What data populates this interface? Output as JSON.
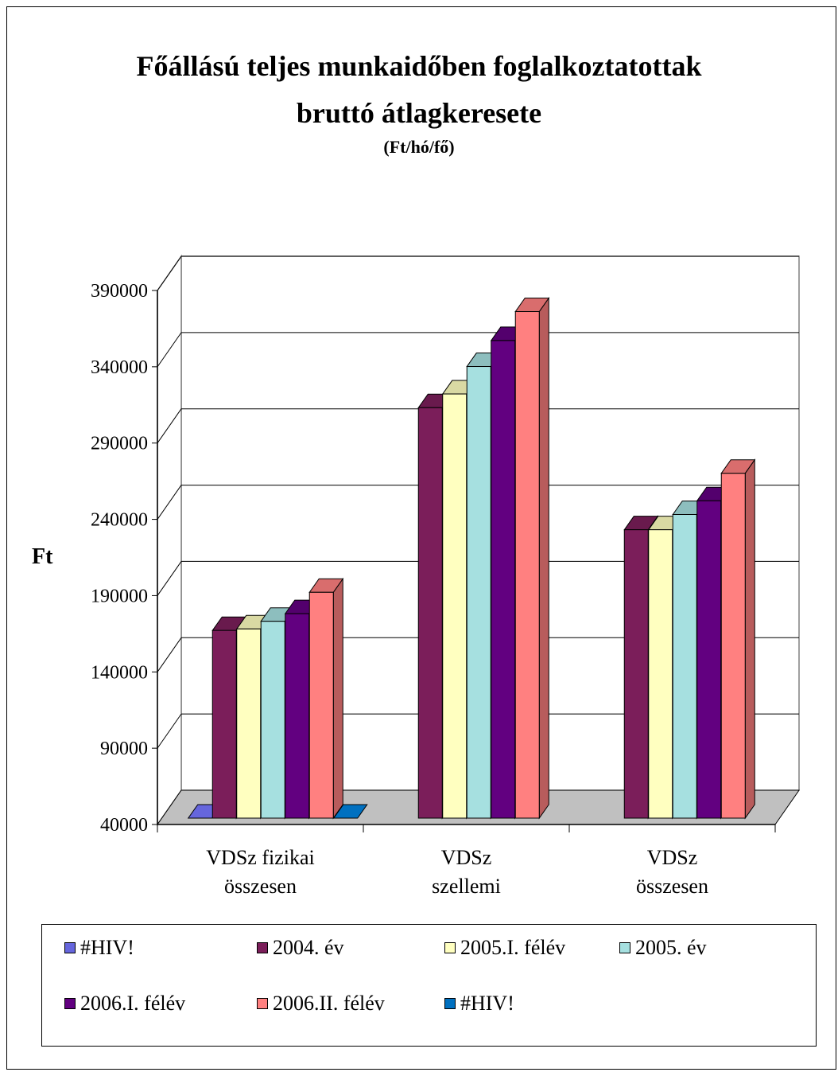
{
  "chart_data": {
    "type": "bar",
    "title_line1": "Főállású teljes munkaidőben foglalkoztatottak",
    "title_line2": "bruttó átlagkeresete",
    "subtitle": "(Ft/hó/fő)",
    "ylabel": "Ft",
    "xlabel": "",
    "categories": [
      [
        "VDSz fizikai",
        "összesen"
      ],
      [
        "VDSz",
        "szellemi"
      ],
      [
        "VDSz",
        "összesen"
      ]
    ],
    "ylim": [
      40000,
      390000
    ],
    "yticks": [
      40000,
      90000,
      140000,
      190000,
      240000,
      290000,
      340000,
      390000
    ],
    "grid": true,
    "legend_position": "bottom",
    "series": [
      {
        "name": "#HIV!",
        "color": "#6666DD",
        "values": [
          40000,
          null,
          null
        ]
      },
      {
        "name": "2004. év",
        "color": "#7B1E5A",
        "values": [
          163000,
          309000,
          229000
        ]
      },
      {
        "name": "2005.I. félév",
        "color": "#FFFFC0",
        "values": [
          164000,
          318000,
          229000
        ]
      },
      {
        "name": "2005. év",
        "color": "#A6E0E0",
        "values": [
          169000,
          336000,
          239000
        ]
      },
      {
        "name": "2006.I. félév",
        "color": "#620080",
        "values": [
          174000,
          353000,
          248000
        ]
      },
      {
        "name": "2006.II. félév",
        "color": "#FF8080",
        "values": [
          188000,
          372000,
          266000
        ]
      },
      {
        "name": "#HIV!",
        "color": "#0070C0",
        "values": [
          40000,
          null,
          null
        ]
      }
    ]
  }
}
